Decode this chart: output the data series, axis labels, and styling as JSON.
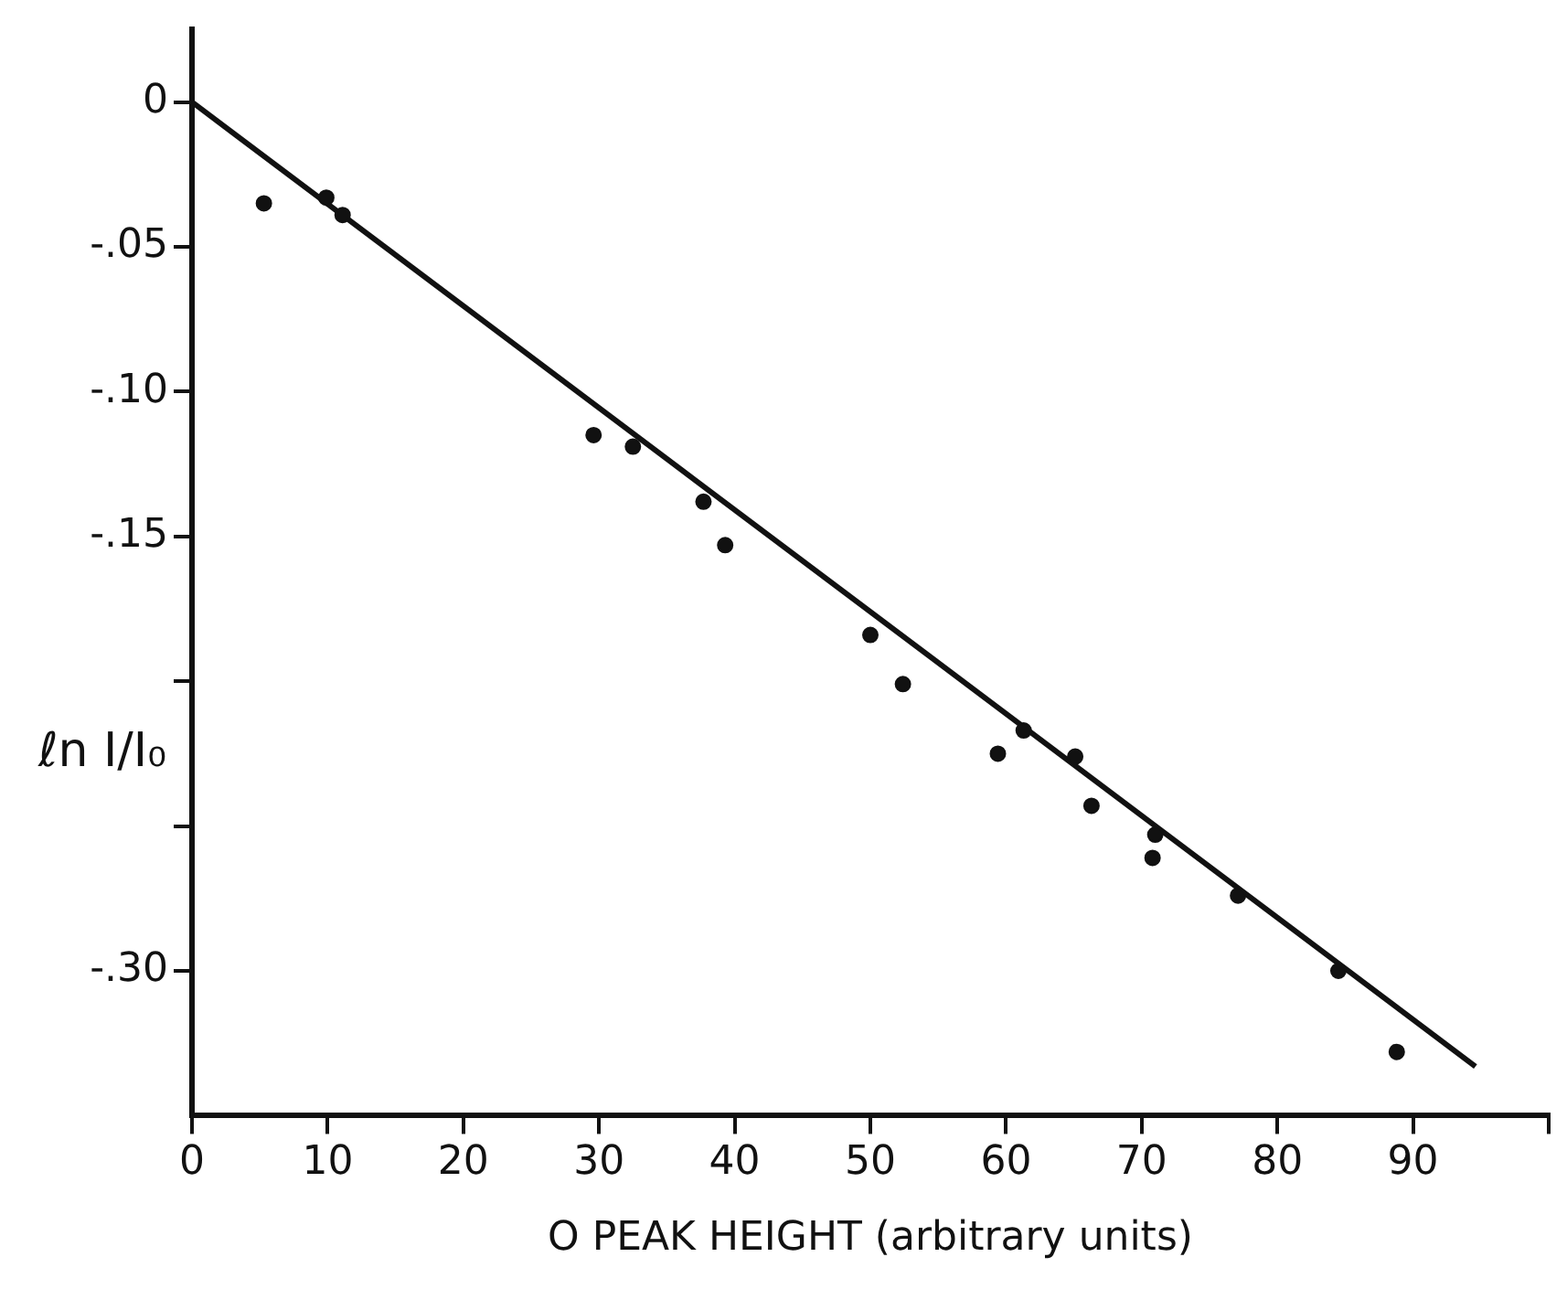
{
  "chart_data": {
    "type": "scatter",
    "xlabel": "O PEAK HEIGHT (arbitrary units)",
    "ylabel": "ℓn I/I₀",
    "xlim": [
      0,
      100
    ],
    "ylim": [
      -0.35,
      0.025
    ],
    "xticks": [
      0,
      10,
      20,
      30,
      40,
      50,
      60,
      70,
      80,
      90,
      {
        "value": 100,
        "label": null
      }
    ],
    "yticks": [
      {
        "value": 0,
        "label": "0"
      },
      {
        "value": -0.05,
        "label": "-.05"
      },
      {
        "value": -0.1,
        "label": "-.10"
      },
      {
        "value": -0.15,
        "label": "-.15"
      },
      {
        "value": -0.2,
        "label": null
      },
      {
        "value": -0.25,
        "label": null
      },
      {
        "value": -0.3,
        "label": "-.30"
      }
    ],
    "grid": false,
    "legend": false,
    "marker": "circle",
    "series": [
      {
        "color": "#111111",
        "x": [
          5.3,
          9.9,
          11.1,
          29.6,
          32.5,
          37.7,
          39.3,
          50.0,
          52.4,
          59.4,
          61.3,
          65.1,
          66.3,
          70.8,
          71.0,
          77.1,
          84.5,
          88.8
        ],
        "values": [
          -0.035,
          -0.033,
          -0.039,
          -0.115,
          -0.119,
          -0.138,
          -0.153,
          -0.184,
          -0.201,
          -0.225,
          -0.217,
          -0.226,
          -0.243,
          -0.261,
          -0.253,
          -0.274,
          -0.3,
          -0.328
        ]
      },
      {
        "type": "line",
        "color": "#111111",
        "marker": "none",
        "x": [
          0,
          94.6
        ],
        "values": [
          0,
          -0.333
        ]
      }
    ]
  }
}
